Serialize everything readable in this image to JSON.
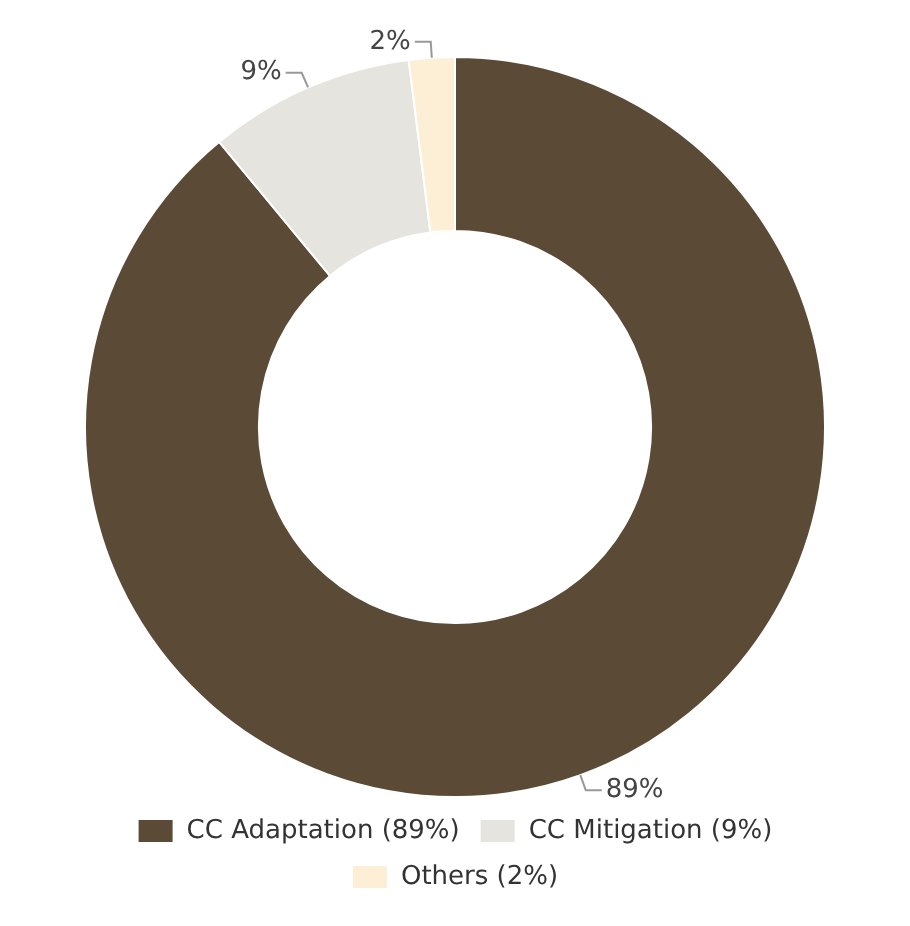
{
  "chart_data": {
    "type": "donut",
    "categories": [
      "CC Adaptation (89%)",
      "CC Mitigation (9%)",
      "Others (2%)"
    ],
    "values": [
      89,
      9,
      2
    ],
    "colors": [
      "#5a4a36",
      "#e6e4de",
      "#fcefd6"
    ],
    "value_labels": [
      "89%",
      "9%",
      "2%"
    ],
    "legend": "bottom"
  }
}
